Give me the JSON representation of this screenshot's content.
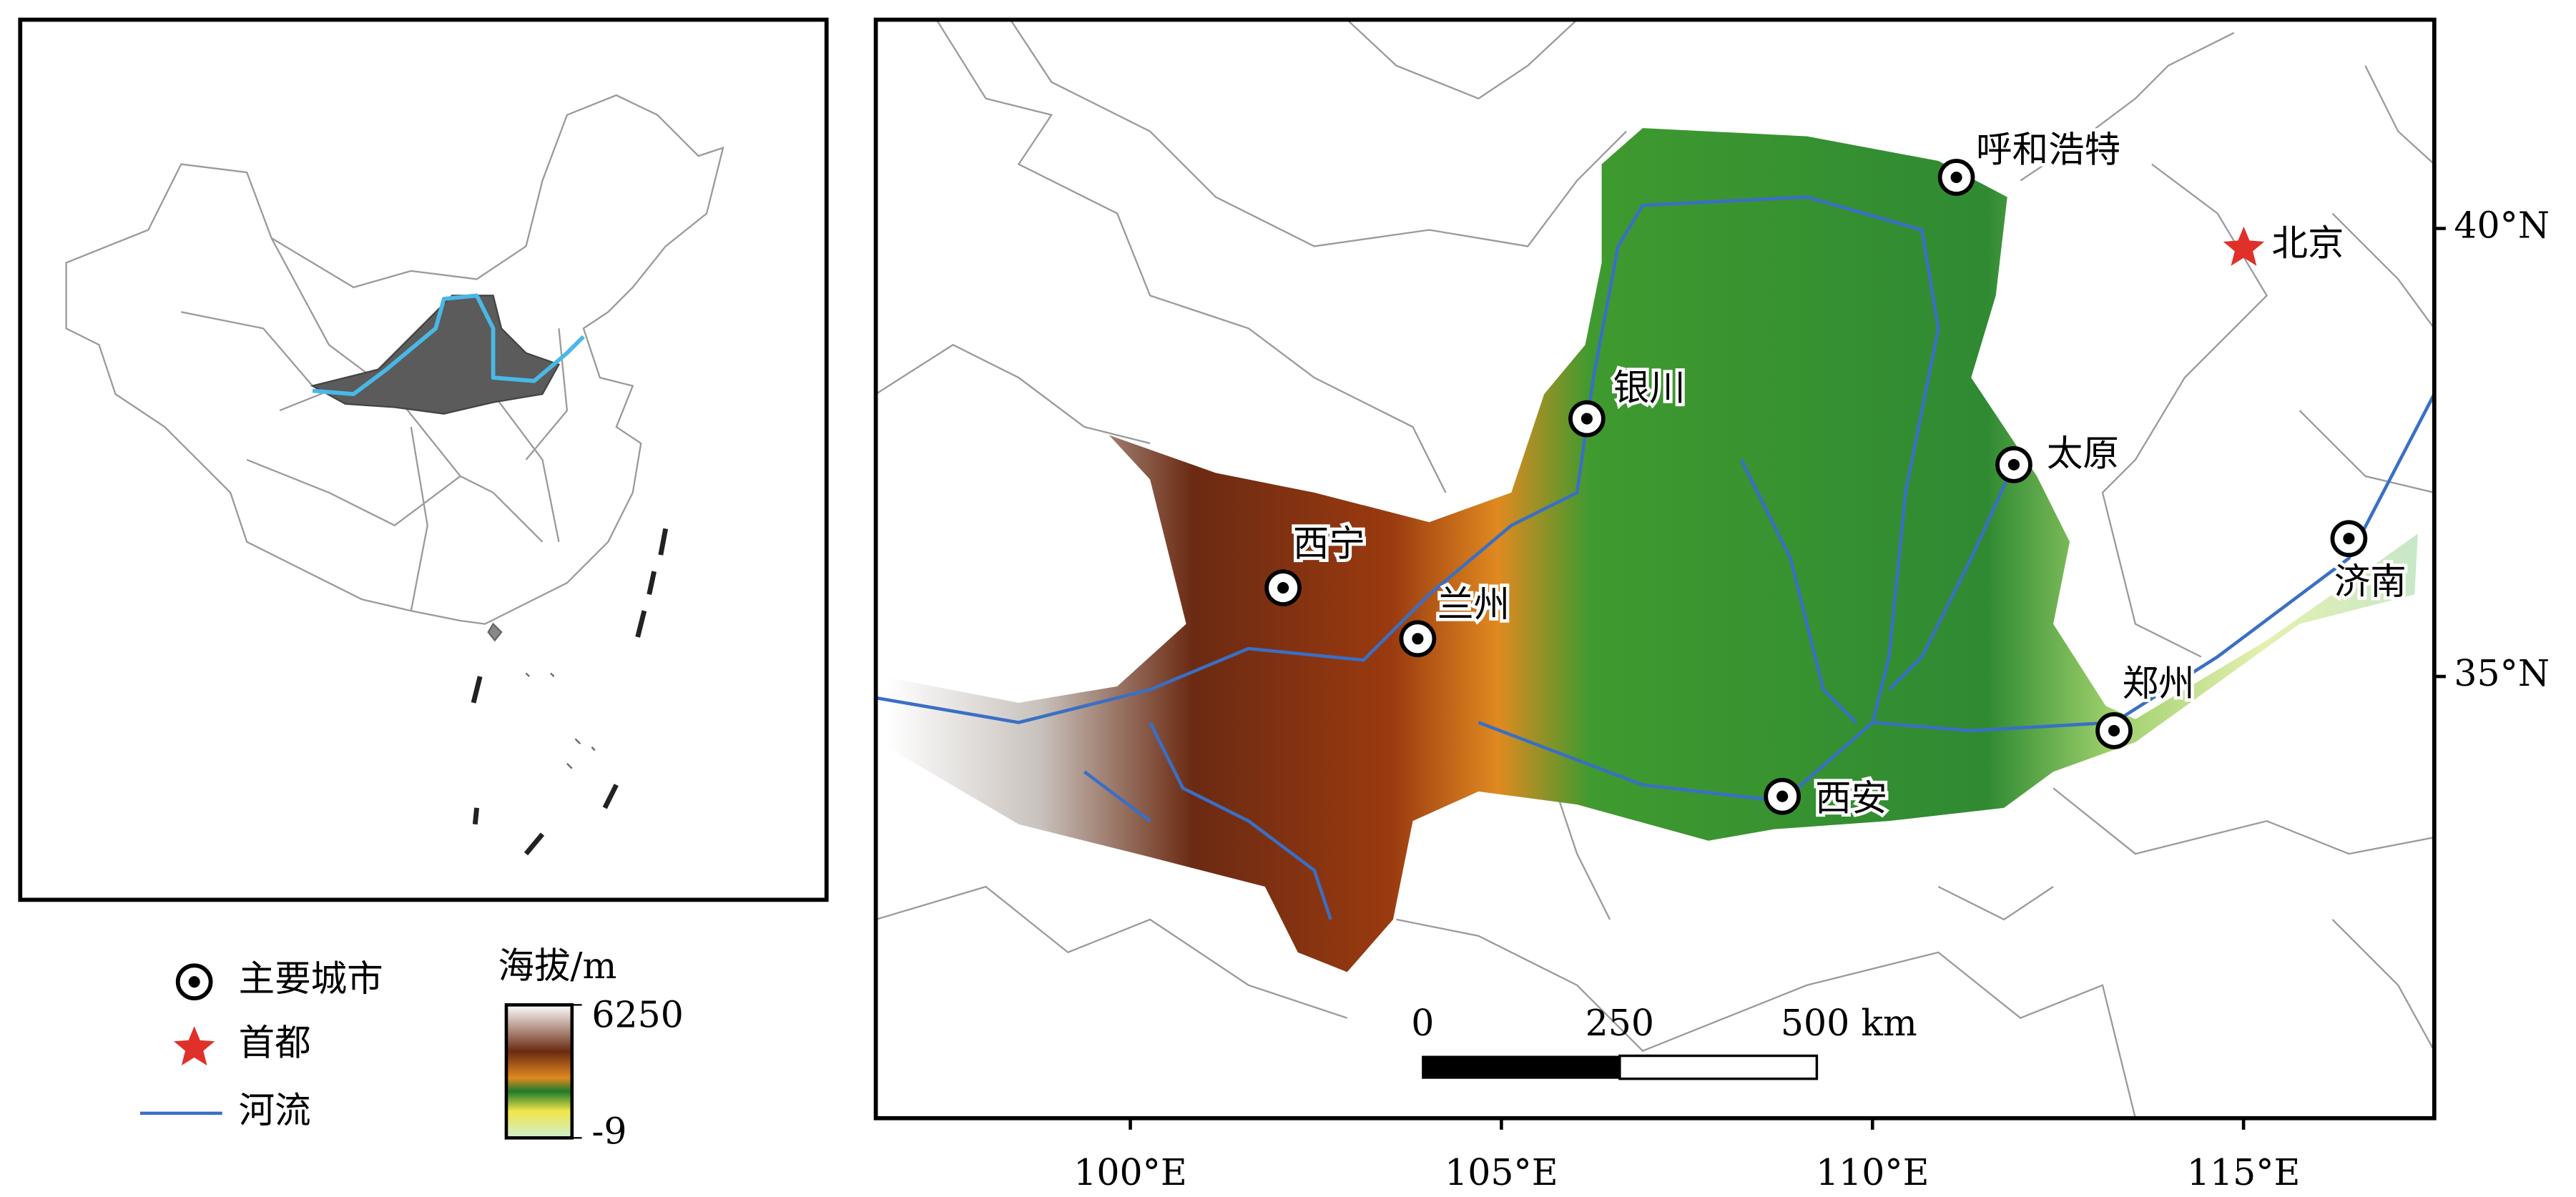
{
  "inset": {},
  "map": {
    "cities": [
      {
        "name": "呼和浩特"
      },
      {
        "name": "银川"
      },
      {
        "name": "太原"
      },
      {
        "name": "西宁"
      },
      {
        "name": "兰州"
      },
      {
        "name": "济南"
      },
      {
        "name": "郑州"
      },
      {
        "name": "西安"
      }
    ],
    "capital": {
      "name": "北京"
    },
    "lon_range": [
      96.57,
      117.57
    ],
    "lat_range": [
      30.07,
      42.33
    ],
    "lon_ticks": [
      {
        "value": 100,
        "label": "100°E"
      },
      {
        "value": 105,
        "label": "105°E"
      },
      {
        "value": 110,
        "label": "110°E"
      },
      {
        "value": 115,
        "label": "115°E"
      }
    ],
    "lat_ticks": [
      {
        "value": 35,
        "label": "35°N"
      },
      {
        "value": 40,
        "label": "40°N"
      }
    ]
  },
  "legend": {
    "items": [
      "主要城市",
      "首都",
      "河流"
    ]
  },
  "colorbar": {
    "title": "海拔/m",
    "max": 6250,
    "min": -9
  },
  "scale_bar": {
    "ticks": [
      0,
      250,
      {
        "value": 500,
        "label": "500 km"
      }
    ]
  }
}
